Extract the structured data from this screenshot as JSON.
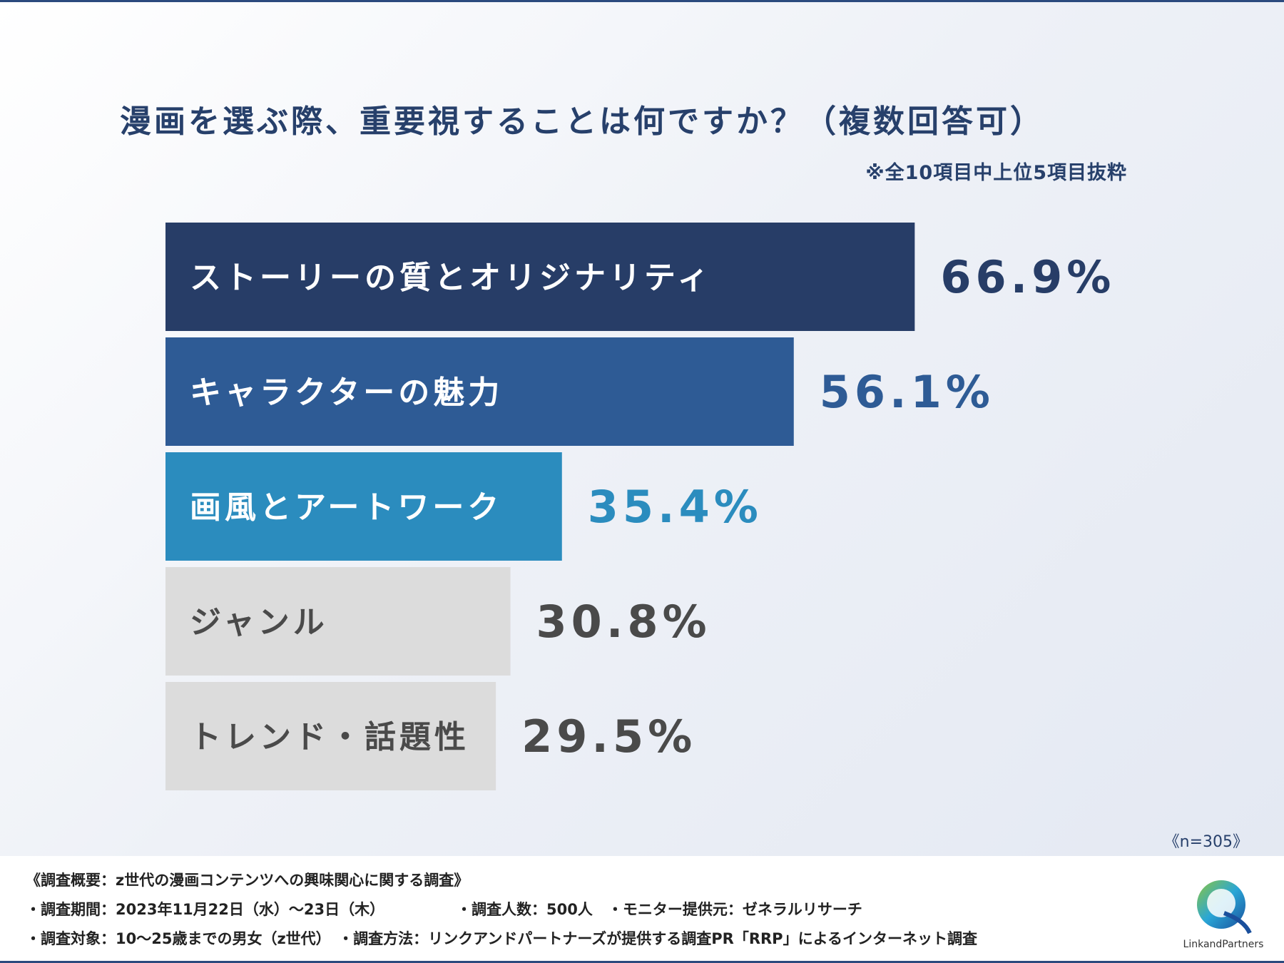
{
  "title": "漫画を選ぶ際、重要視することは何ですか？（複数回答可）",
  "note": "※全10項目中上位5項目抜粋",
  "n_label": "《n=305》",
  "colors": {
    "bar1": "#273d67",
    "bar2": "#2e5b95",
    "bar3": "#2b8cbe",
    "bar_gray": "#dcdcdc",
    "label_dark": "#4a4a4a",
    "white": "#ffffff"
  },
  "chart_data": {
    "type": "bar",
    "orientation": "horizontal",
    "title": "漫画を選ぶ際、重要視することは何ですか？（複数回答可）",
    "unit": "%",
    "categories": [
      "ストーリーの質とオリジナリティ",
      "キャラクターの魅力",
      "画風とアートワーク",
      "ジャンル",
      "トレンド・話題性"
    ],
    "values": [
      66.9,
      56.1,
      35.4,
      30.8,
      29.5
    ],
    "value_labels": [
      "66.9%",
      "56.1%",
      "35.4%",
      "30.8%",
      "29.5%"
    ],
    "xlim": [
      0,
      100
    ]
  },
  "footer": {
    "line1": "《調査概要：z世代の漫画コンテンツへの興味関心に関する調査》",
    "line2a": "・調査期間：2023年11月22日（水）〜23日（木）",
    "line2b": "・調査人数：500人　・モニター提供元：ゼネラルリサーチ",
    "line3": "・調査対象：10〜25歳までの男女（z世代）　・調査方法：リンクアンドパートナーズが提供する調査PR「RRP」によるインターネット調査"
  },
  "logo_text": "LinkandPartners"
}
